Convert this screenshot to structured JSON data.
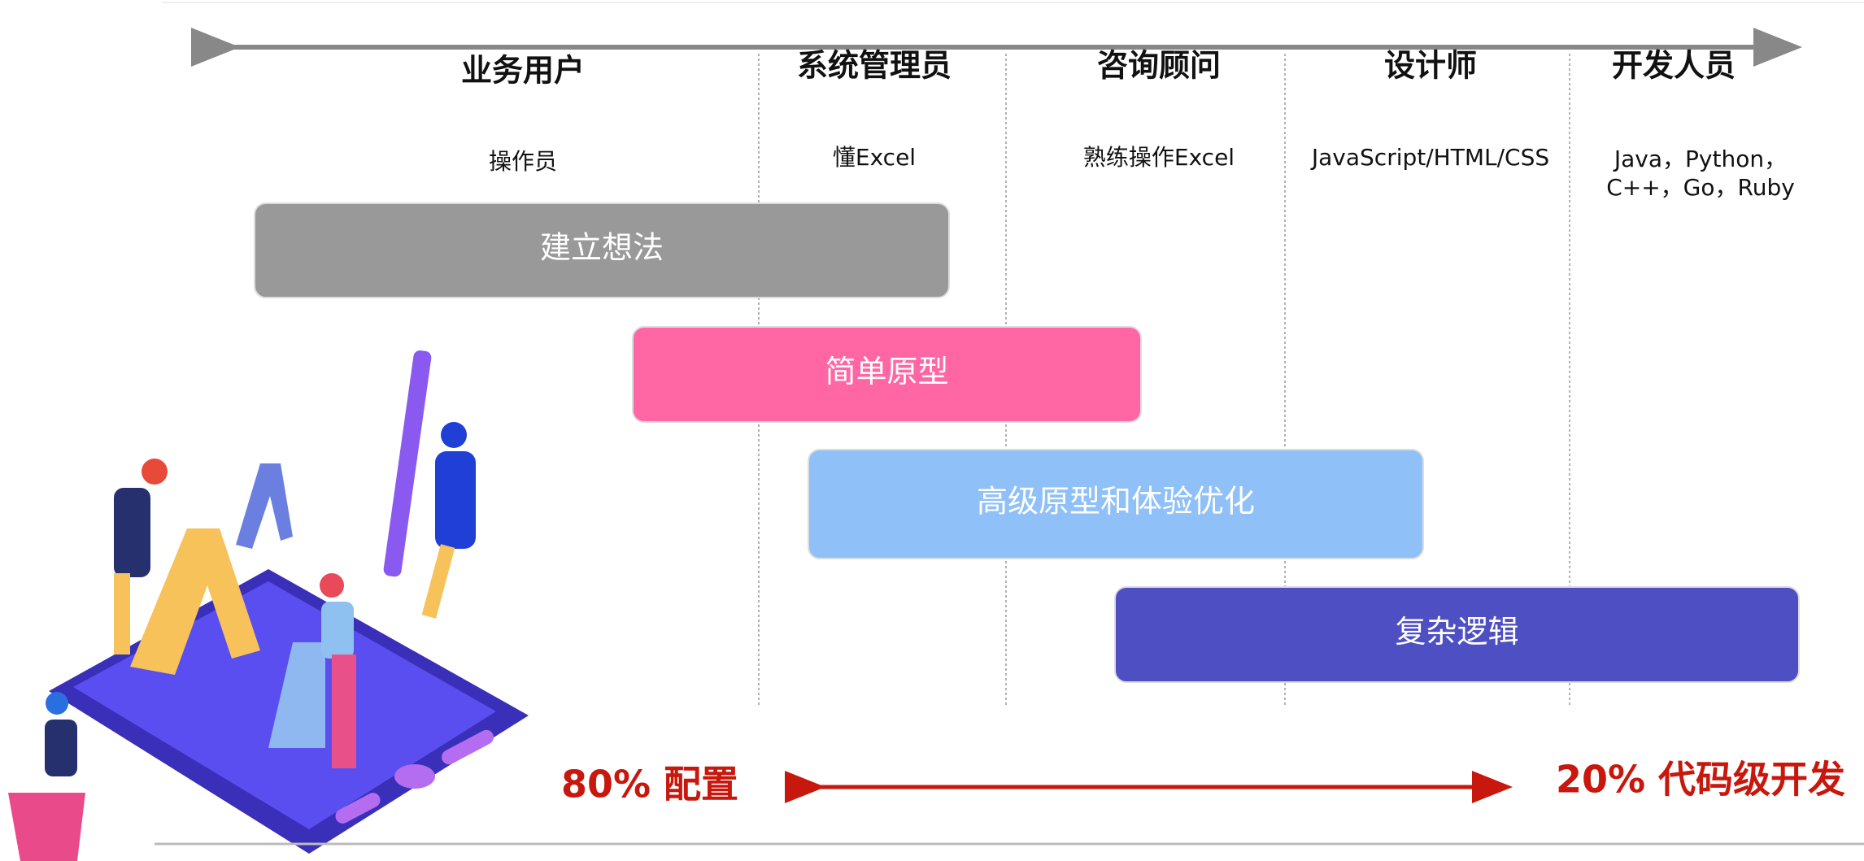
{
  "columns": [
    {
      "title": "业务用户",
      "skill_lines": [
        "操作员"
      ]
    },
    {
      "title": "系统管理员",
      "skill_lines": [
        "懂Excel"
      ]
    },
    {
      "title": "咨询顾问",
      "skill_lines": [
        "熟练操作Excel"
      ]
    },
    {
      "title": "设计师",
      "skill_lines": [
        "JavaScript/HTML/CSS"
      ]
    },
    {
      "title": "开发人员",
      "skill_lines": [
        "Java，Python，",
        "C++，Go，Ruby"
      ]
    }
  ],
  "stages": [
    "建立想法",
    "简单原型",
    "高级原型和体验优化",
    "复杂逻辑"
  ],
  "bottom": {
    "left": "80% 配置",
    "right": "20% 代码级开发"
  }
}
